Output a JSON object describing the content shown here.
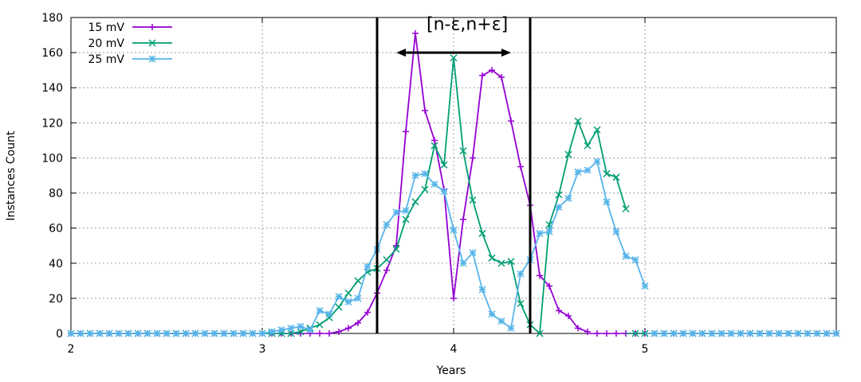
{
  "chart_data": {
    "type": "line",
    "title": "",
    "xlabel": "Years",
    "ylabel": "Instances Count",
    "xlim": [
      2,
      6
    ],
    "ylim": [
      0,
      180
    ],
    "xticks": [
      2,
      3,
      4,
      5
    ],
    "yticks": [
      0,
      20,
      40,
      60,
      80,
      100,
      120,
      140,
      160,
      180
    ],
    "grid": true,
    "legend_position": "top-left",
    "series": [
      {
        "name": "15 mV",
        "color": "#9400d3",
        "marker": "plus",
        "x": [
          3.35,
          3.4,
          3.45,
          3.5,
          3.55,
          3.6,
          3.65,
          3.7,
          3.75,
          3.8,
          3.85,
          3.9,
          3.95,
          4.0,
          4.05,
          4.1,
          4.15,
          4.2,
          4.25,
          4.3,
          4.35,
          4.4,
          4.45,
          4.5,
          4.55,
          4.6,
          4.65,
          4.7
        ],
        "y": [
          0,
          1,
          3,
          6,
          12,
          23,
          36,
          50,
          115,
          171,
          127,
          110,
          82,
          20,
          65,
          100,
          147,
          150,
          146,
          121,
          95,
          73,
          33,
          27,
          13,
          10,
          3,
          1
        ]
      },
      {
        "name": "20 mV",
        "color": "#009e73",
        "marker": "cross",
        "x": [
          3.15,
          3.2,
          3.25,
          3.3,
          3.35,
          3.4,
          3.45,
          3.5,
          3.55,
          3.6,
          3.65,
          3.7,
          3.75,
          3.8,
          3.85,
          3.9,
          3.95,
          4.0,
          4.05,
          4.1,
          4.15,
          4.2,
          4.25,
          4.3,
          4.35,
          4.4,
          4.45,
          4.5,
          4.55,
          4.6,
          4.65,
          4.7,
          4.75,
          4.8,
          4.85,
          4.9
        ],
        "y": [
          0,
          1,
          3,
          5,
          9,
          15,
          23,
          30,
          35,
          37,
          42,
          48,
          65,
          75,
          82,
          107,
          96,
          157,
          104,
          76,
          57,
          43,
          40,
          41,
          17,
          5,
          0,
          62,
          79,
          102,
          121,
          107,
          116,
          91,
          89,
          71
        ],
        "x_aux": [],
        "y_aux": []
      },
      {
        "name": "25 mV",
        "color": "#56b4e9",
        "marker": "star",
        "x": [
          3.0,
          3.05,
          3.1,
          3.15,
          3.2,
          3.25,
          3.3,
          3.35,
          3.4,
          3.45,
          3.5,
          3.55,
          3.6,
          3.65,
          3.7,
          3.75,
          3.8,
          3.85,
          3.9,
          3.95,
          4.0,
          4.05,
          4.1,
          4.15,
          4.2,
          4.25,
          4.3,
          4.35,
          4.4,
          4.45,
          4.5,
          4.55,
          4.6,
          4.65,
          4.7,
          4.75,
          4.8,
          4.85,
          4.9,
          4.95,
          5.0
        ],
        "y": [
          0,
          1,
          2,
          3,
          4,
          2,
          13,
          11,
          21,
          18,
          20,
          38,
          48,
          62,
          69,
          70,
          90,
          91,
          85,
          81,
          59,
          40,
          46,
          25,
          11,
          7,
          3,
          34,
          42,
          57,
          58,
          72,
          77,
          92,
          93,
          98,
          75,
          58,
          44,
          42,
          27
        ]
      }
    ],
    "annotations": [
      {
        "text": "[n-ε,n+ε]",
        "x": 4.0,
        "y": 172
      }
    ],
    "vertical_lines": [
      3.6,
      4.4
    ],
    "arrow": {
      "from": 3.7,
      "to": 4.3,
      "y": 160
    }
  }
}
